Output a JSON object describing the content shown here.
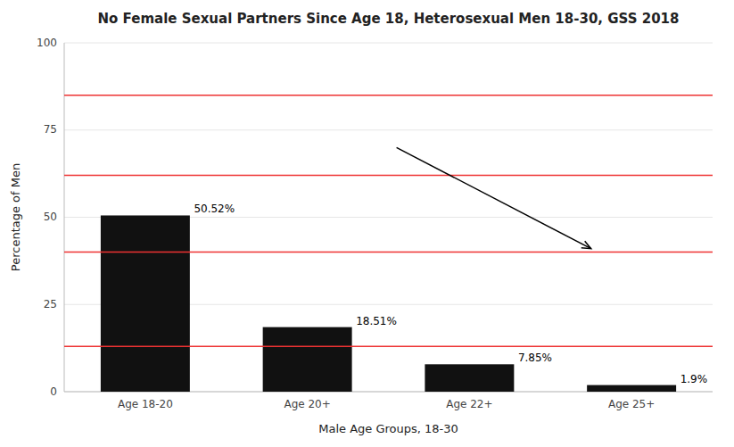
{
  "chart_data": {
    "type": "bar",
    "title": "No Female Sexual Partners Since Age 18, Heterosexual Men 18-30, GSS 2018",
    "x_label": "Male Age Groups, 18-30",
    "y_label": "Percentage of Men",
    "categories": [
      "Age 18-20",
      "Age 20+",
      "Age 22+",
      "Age 25+"
    ],
    "values": [
      50.52,
      18.51,
      7.85,
      1.9
    ],
    "value_labels": [
      "50.52%",
      "18.51%",
      "7.85%",
      "1.9%"
    ],
    "data_labels": true,
    "color": "#111111",
    "reference_lines": {
      "values": [
        85,
        62,
        40,
        13
      ],
      "color": "#ee3333"
    },
    "arrow": {
      "start": {
        "x": 1.55,
        "y": 70
      },
      "end": {
        "x": 2.75,
        "y": 41
      }
    },
    "ylim": [
      0,
      100
    ],
    "yticks": [
      0,
      25,
      50,
      75,
      100
    ],
    "grid": true
  }
}
